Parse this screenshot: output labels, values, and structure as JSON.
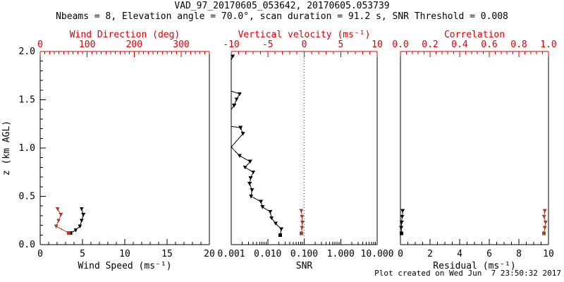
{
  "header": {
    "title": "VAD_97_20170605_053642, 20170605.053739",
    "subtitle": "Nbeams = 8, Elevation angle = 70.0°, scan duration = 91.2 s, SNR Threshold = 0.008"
  },
  "footer": {
    "created": "Plot created on Wed Jun  7 23:50:32 2017"
  },
  "colors": {
    "black": "#000000",
    "axis_red": "#dd0000",
    "data_red": "#ae3a28",
    "background": "#ffffff"
  },
  "chart_data": {
    "type": "line",
    "title": "VAD_97_20170605_053642, 20170605.053739",
    "subtitle": "Nbeams = 8, Elevation angle = 70.0°, scan duration = 91.2 s, SNR Threshold = 0.008",
    "grid": false,
    "legend": false,
    "y_axis": {
      "label": "z (km AGL)",
      "min": 0,
      "max": 2,
      "ticks": [
        {
          "v": 0.0,
          "t": "0.0"
        },
        {
          "v": 0.5,
          "t": "0.5"
        },
        {
          "v": 1.0,
          "t": "1.0"
        },
        {
          "v": 1.5,
          "t": "1.5"
        },
        {
          "v": 2.0,
          "t": "2.0"
        }
      ],
      "minor_step": 0.1
    },
    "panels": [
      {
        "id": "wind",
        "bottom_axis": {
          "label": "Wind Speed (ms⁻¹)",
          "min": 0,
          "max": 20,
          "color": "black",
          "ticks": [
            {
              "v": 0,
              "t": "0"
            },
            {
              "v": 5,
              "t": "5"
            },
            {
              "v": 10,
              "t": "10"
            },
            {
              "v": 15,
              "t": "15"
            },
            {
              "v": 20,
              "t": "20"
            }
          ],
          "minor_step": 1
        },
        "top_axis": {
          "label": "Wind Direction (deg)",
          "min": 0,
          "max": 360,
          "color": "axis_red",
          "ticks": [
            {
              "v": 0,
              "t": "0"
            },
            {
              "v": 100,
              "t": "100"
            },
            {
              "v": 200,
              "t": "200"
            },
            {
              "v": 300,
              "t": "300"
            }
          ],
          "minor_step": 10
        },
        "show_y_labels": true,
        "series": [
          {
            "name": "wind-speed",
            "axis": "bottom",
            "color": "black",
            "points": [
              {
                "x": 4.9,
                "z": 0.37
              },
              {
                "x": 5.1,
                "z": 0.31
              },
              {
                "x": 4.9,
                "z": 0.25
              },
              {
                "x": 4.7,
                "z": 0.19
              },
              {
                "x": 4.2,
                "z": 0.15
              },
              {
                "x": 3.6,
                "z": 0.12,
                "m": "sq"
              }
            ]
          },
          {
            "name": "wind-direction",
            "axis": "top",
            "color": "data_red",
            "points": [
              {
                "x": 37,
                "z": 0.37
              },
              {
                "x": 44,
                "z": 0.31
              },
              {
                "x": 39,
                "z": 0.25
              },
              {
                "x": 34,
                "z": 0.19
              },
              {
                "x": 61,
                "z": 0.12,
                "m": "sq"
              }
            ]
          }
        ]
      },
      {
        "id": "snr",
        "bottom_axis": {
          "label": "SNR",
          "min": 0.001,
          "max": 10,
          "log": true,
          "color": "black",
          "ticks": [
            {
              "v": 0.001,
              "t": "0.001"
            },
            {
              "v": 0.01,
              "t": "0.010"
            },
            {
              "v": 0.1,
              "t": "0.100"
            },
            {
              "v": 1,
              "t": "1.000"
            },
            {
              "v": 10,
              "t": "10.000"
            }
          ]
        },
        "top_axis": {
          "label": "Vertical velocity (ms⁻¹)",
          "min": -10,
          "max": 10,
          "color": "axis_red",
          "ticks": [
            {
              "v": -10,
              "t": "-10"
            },
            {
              "v": -5,
              "t": "-5"
            },
            {
              "v": 0,
              "t": "0"
            },
            {
              "v": 5,
              "t": "5"
            },
            {
              "v": 10,
              "t": "10"
            }
          ],
          "minor_step": 1
        },
        "zero_line": {
          "axis": "top",
          "v": 0,
          "style": "dotted",
          "color": "axis_red"
        },
        "show_y_labels": false,
        "series": [
          {
            "name": "snr-profile",
            "axis": "bottom",
            "color": "black",
            "points": [
              {
                "x": 0.0011,
                "z": 1.95
              },
              {
                "x": 0.001,
                "z": 1.91,
                "m": "none"
              },
              {
                "x": 0.001,
                "z": 1.59,
                "m": "none"
              },
              {
                "x": 0.0017,
                "z": 1.56
              },
              {
                "x": 0.0014,
                "z": 1.505
              },
              {
                "x": 0.0012,
                "z": 1.44
              },
              {
                "x": 0.001,
                "z": 1.4,
                "m": "none"
              },
              {
                "x": 0.001,
                "z": 1.225,
                "m": "none"
              },
              {
                "x": 0.0018,
                "z": 1.21
              },
              {
                "x": 0.0021,
                "z": 1.15
              },
              {
                "x": 0.001,
                "z": 1.01,
                "m": "none"
              },
              {
                "x": 0.0017,
                "z": 0.92
              },
              {
                "x": 0.0033,
                "z": 0.86
              },
              {
                "x": 0.0024,
                "z": 0.8
              },
              {
                "x": 0.004,
                "z": 0.75
              },
              {
                "x": 0.0034,
                "z": 0.69
              },
              {
                "x": 0.0032,
                "z": 0.63
              },
              {
                "x": 0.0037,
                "z": 0.565
              },
              {
                "x": 0.0035,
                "z": 0.5
              },
              {
                "x": 0.0065,
                "z": 0.445
              },
              {
                "x": 0.0072,
                "z": 0.39
              },
              {
                "x": 0.0117,
                "z": 0.34
              },
              {
                "x": 0.0127,
                "z": 0.275
              },
              {
                "x": 0.0165,
                "z": 0.22
              },
              {
                "x": 0.0235,
                "z": 0.16
              },
              {
                "x": 0.022,
                "z": 0.1,
                "m": "sq"
              }
            ]
          },
          {
            "name": "vertical-velocity",
            "axis": "top",
            "color": "data_red",
            "points": [
              {
                "x": -0.4,
                "z": 0.35
              },
              {
                "x": -0.3,
                "z": 0.29
              },
              {
                "x": -0.25,
                "z": 0.23
              },
              {
                "x": -0.3,
                "z": 0.175
              },
              {
                "x": -0.4,
                "z": 0.115,
                "m": "sq"
              }
            ]
          }
        ]
      },
      {
        "id": "residual",
        "bottom_axis": {
          "label": "Residual (ms⁻¹)",
          "min": 0,
          "max": 10,
          "color": "black",
          "ticks": [
            {
              "v": 0,
              "t": "0"
            },
            {
              "v": 2,
              "t": "2"
            },
            {
              "v": 4,
              "t": "4"
            },
            {
              "v": 6,
              "t": "6"
            },
            {
              "v": 8,
              "t": "8"
            },
            {
              "v": 10,
              "t": "10"
            }
          ],
          "minor_step": 0.5
        },
        "top_axis": {
          "label": "Correlation",
          "min": 0,
          "max": 1,
          "color": "axis_red",
          "ticks": [
            {
              "v": 0,
              "t": "0.0"
            },
            {
              "v": 0.2,
              "t": "0.2"
            },
            {
              "v": 0.4,
              "t": "0.4"
            },
            {
              "v": 0.6,
              "t": "0.6"
            },
            {
              "v": 0.8,
              "t": "0.8"
            },
            {
              "v": 1,
              "t": "1.0"
            }
          ],
          "minor_step": 0.04
        },
        "show_y_labels": false,
        "series": [
          {
            "name": "residual",
            "axis": "bottom",
            "color": "black",
            "points": [
              {
                "x": 0.15,
                "z": 0.35
              },
              {
                "x": 0.12,
                "z": 0.29
              },
              {
                "x": 0.08,
                "z": 0.23
              },
              {
                "x": 0.05,
                "z": 0.175
              },
              {
                "x": 0.08,
                "z": 0.115,
                "m": "sq"
              }
            ]
          },
          {
            "name": "correlation",
            "axis": "top",
            "color": "data_red",
            "points": [
              {
                "x": 0.975,
                "z": 0.35
              },
              {
                "x": 0.97,
                "z": 0.29
              },
              {
                "x": 0.98,
                "z": 0.23
              },
              {
                "x": 0.975,
                "z": 0.175
              },
              {
                "x": 0.97,
                "z": 0.115,
                "m": "sq"
              }
            ]
          }
        ]
      }
    ]
  }
}
